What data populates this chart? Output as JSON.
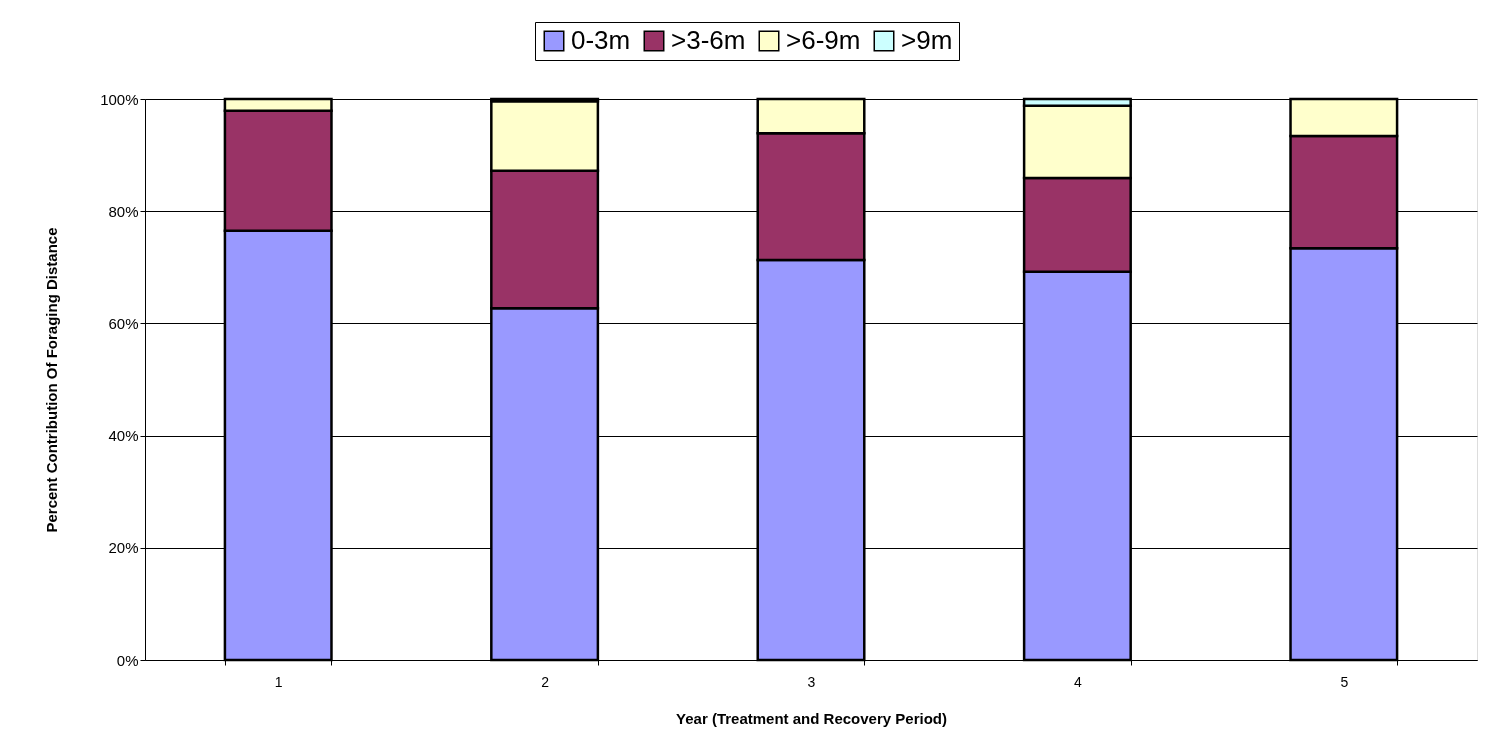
{
  "chart_data": {
    "type": "bar",
    "stacked": true,
    "xlabel": "Year (Treatment and Recovery Period)",
    "ylabel": "Percent Contribution Of Foraging Distance",
    "categories": [
      "1",
      "2",
      "3",
      "4",
      "5"
    ],
    "series": [
      {
        "name": "0-3m",
        "color": "#9999ff",
        "values": [
          76.5,
          62.7,
          71.3,
          69.2,
          73.4
        ]
      },
      {
        "name": ">3-6m",
        "color": "#993366",
        "values": [
          21.4,
          24.5,
          22.6,
          16.7,
          20.0
        ]
      },
      {
        "name": ">6-9m",
        "color": "#ffffcc",
        "values": [
          2.1,
          12.4,
          6.1,
          12.9,
          6.6
        ]
      },
      {
        "name": ">9m",
        "color": "#ccffff",
        "values": [
          null,
          0.4,
          null,
          1.2,
          null
        ]
      }
    ],
    "ylim": [
      0,
      100
    ],
    "yticks": [
      {
        "value": 0,
        "label": "0%"
      },
      {
        "value": 20,
        "label": "20%"
      },
      {
        "value": 40,
        "label": "40%"
      },
      {
        "value": 60,
        "label": "60%"
      },
      {
        "value": 80,
        "label": "80%"
      },
      {
        "value": 100,
        "label": "100%"
      }
    ],
    "grid": "y",
    "legend": "top"
  }
}
